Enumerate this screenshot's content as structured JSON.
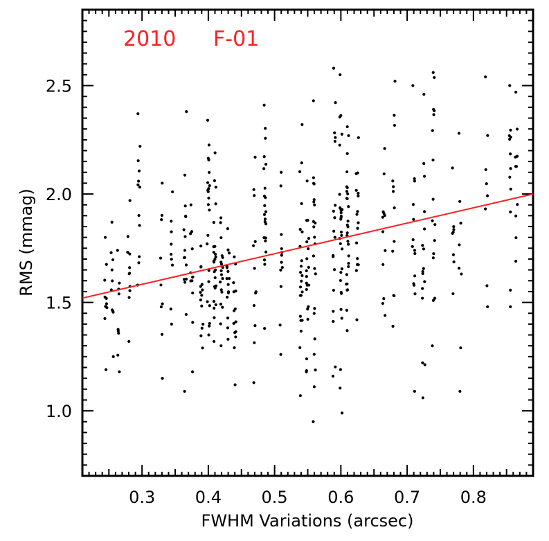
{
  "chart_data": {
    "type": "scatter",
    "title": "",
    "annotations": [
      {
        "text": "2010",
        "color": "#ff2020"
      },
      {
        "text": "F-01",
        "color": "#ff2020"
      }
    ],
    "xlabel": "FWHM Variations (arcsec)",
    "ylabel": "RMS (mmag)",
    "xlim": [
      0.21,
      0.89
    ],
    "ylim": [
      0.7,
      2.85
    ],
    "xticks": [
      0.3,
      0.4,
      0.5,
      0.6,
      0.7,
      0.8
    ],
    "xtick_labels": [
      "0.3",
      "0.4",
      "0.5",
      "0.6",
      "0.7",
      "0.8"
    ],
    "yticks": [
      1.0,
      1.5,
      2.0,
      2.5
    ],
    "ytick_labels": [
      "1.0",
      "1.5",
      "2.0",
      "2.5"
    ],
    "grid": false,
    "marker_color": "#000000",
    "fit_line": {
      "color": "#ff2020",
      "x": [
        0.21,
        0.89
      ],
      "y": [
        1.52,
        2.0
      ]
    },
    "column_ranges": [
      [
        0.245,
        1.19,
        1.8,
        10
      ],
      [
        0.255,
        1.25,
        1.87,
        10
      ],
      [
        0.265,
        1.18,
        1.74,
        9
      ],
      [
        0.28,
        1.32,
        1.97,
        11
      ],
      [
        0.295,
        1.58,
        2.37,
        12
      ],
      [
        0.33,
        1.15,
        2.05,
        9
      ],
      [
        0.345,
        1.4,
        2.01,
        9
      ],
      [
        0.365,
        1.09,
        2.38,
        16
      ],
      [
        0.375,
        1.18,
        1.95,
        12
      ],
      [
        0.39,
        1.29,
        1.76,
        14
      ],
      [
        0.4,
        1.35,
        2.34,
        22
      ],
      [
        0.41,
        1.32,
        2.19,
        24
      ],
      [
        0.42,
        1.3,
        1.89,
        18
      ],
      [
        0.43,
        1.33,
        1.84,
        16
      ],
      [
        0.44,
        1.12,
        1.71,
        14
      ],
      [
        0.47,
        1.13,
        2.17,
        12
      ],
      [
        0.485,
        1.38,
        2.41,
        22
      ],
      [
        0.51,
        1.26,
        2.1,
        12
      ],
      [
        0.54,
        1.07,
        2.32,
        22
      ],
      [
        0.55,
        1.18,
        2.06,
        20
      ],
      [
        0.56,
        0.95,
        2.43,
        22
      ],
      [
        0.59,
        1.16,
        2.58,
        18
      ],
      [
        0.6,
        0.99,
        2.55,
        30
      ],
      [
        0.61,
        1.37,
        2.31,
        28
      ],
      [
        0.625,
        1.42,
        2.26,
        16
      ],
      [
        0.665,
        1.44,
        2.21,
        12
      ],
      [
        0.68,
        1.39,
        2.52,
        12
      ],
      [
        0.71,
        1.09,
        2.5,
        14
      ],
      [
        0.725,
        1.06,
        2.46,
        16
      ],
      [
        0.74,
        1.3,
        2.56,
        16
      ],
      [
        0.77,
        1.54,
        2.12,
        8
      ],
      [
        0.78,
        1.09,
        2.28,
        8
      ],
      [
        0.82,
        1.48,
        2.54,
        8
      ],
      [
        0.855,
        1.48,
        2.5,
        12
      ],
      [
        0.865,
        1.69,
        2.47,
        10
      ]
    ]
  }
}
